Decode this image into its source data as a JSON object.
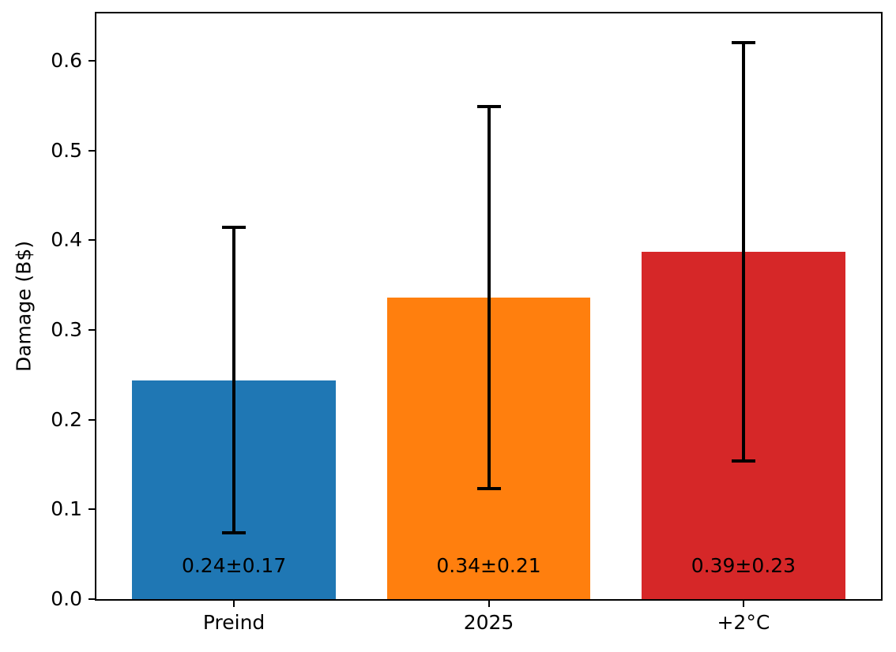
{
  "chart_data": {
    "type": "bar",
    "title": "",
    "categories": [
      "Preind",
      "2025",
      "+2°C"
    ],
    "values": [
      0.244,
      0.336,
      0.387
    ],
    "errors": [
      0.17,
      0.213,
      0.233
    ],
    "bar_labels": [
      "0.24±0.17",
      "0.34±0.21",
      "0.39±0.23"
    ],
    "bar_colors": [
      "#1f77b4",
      "#ff7f0e",
      "#d62728"
    ],
    "error_bar_color": "#000000",
    "xlabel": "",
    "ylabel": "Damage (B$)",
    "ylim": [
      0,
      0.653
    ],
    "yticks": [
      0.0,
      0.1,
      0.2,
      0.3,
      0.4,
      0.5,
      0.6
    ],
    "ytick_labels": [
      "0.0",
      "0.1",
      "0.2",
      "0.3",
      "0.4",
      "0.5",
      "0.6"
    ],
    "grid": false,
    "legend": null,
    "frame": "full-box"
  }
}
